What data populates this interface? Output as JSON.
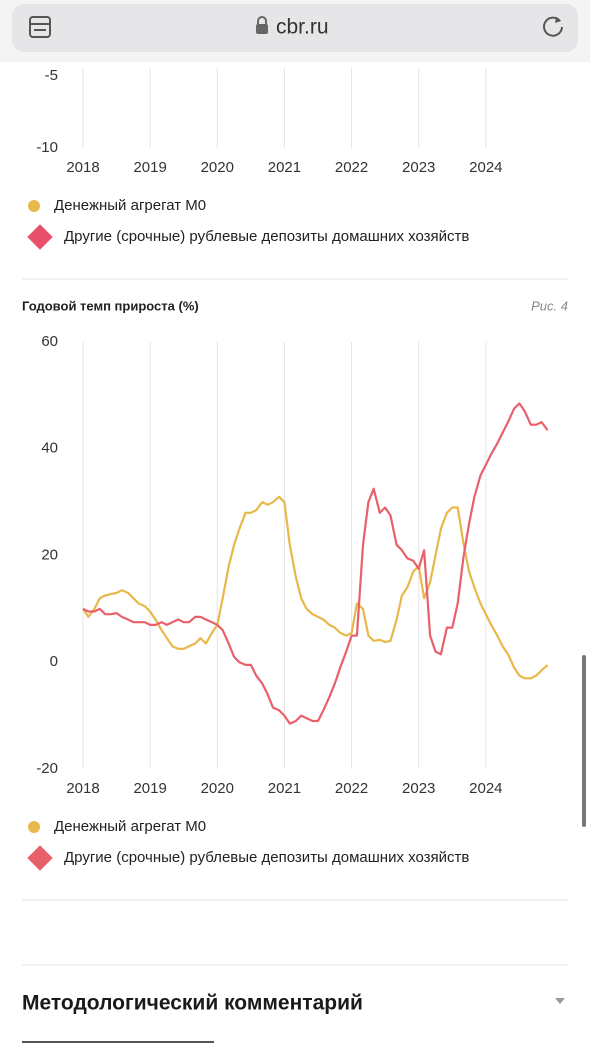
{
  "browser": {
    "url": "cbr.ru"
  },
  "chart_data": [
    {
      "type": "line",
      "xlim": [
        2018,
        2025
      ],
      "xticks": [
        2018,
        2019,
        2020,
        2021,
        2022,
        2023,
        2024
      ],
      "ylim": [
        -10,
        -5
      ],
      "yticks": [
        -10,
        -5
      ],
      "grid": "vertical",
      "series": [
        {
          "name": "Денежный агрегат M0",
          "color": "#e8b84a",
          "marker": "circle"
        },
        {
          "name": "Другие (срочные) рублевые депозиты домашних хозяйств",
          "color": "#e8506a",
          "marker": "diamond"
        }
      ]
    },
    {
      "type": "line",
      "title": "Годовой темп прироста (%)",
      "figure_label": "Рис. 4",
      "xlim": [
        2018,
        2025
      ],
      "xticks": [
        2018,
        2019,
        2020,
        2021,
        2022,
        2023,
        2024
      ],
      "ylim": [
        -20,
        60
      ],
      "yticks": [
        -20,
        0,
        20,
        40,
        60
      ],
      "grid": "vertical",
      "x": [
        2018,
        2018.08,
        2018.17,
        2018.25,
        2018.33,
        2018.42,
        2018.5,
        2018.58,
        2018.67,
        2018.75,
        2018.83,
        2018.92,
        2019,
        2019.08,
        2019.17,
        2019.25,
        2019.33,
        2019.42,
        2019.5,
        2019.58,
        2019.67,
        2019.75,
        2019.83,
        2019.92,
        2020,
        2020.08,
        2020.17,
        2020.25,
        2020.33,
        2020.42,
        2020.5,
        2020.58,
        2020.67,
        2020.75,
        2020.83,
        2020.92,
        2021,
        2021.08,
        2021.17,
        2021.25,
        2021.33,
        2021.42,
        2021.5,
        2021.58,
        2021.67,
        2021.75,
        2021.83,
        2021.92,
        2022,
        2022.08,
        2022.17,
        2022.25,
        2022.33,
        2022.42,
        2022.5,
        2022.58,
        2022.67,
        2022.75,
        2022.83,
        2022.92,
        2023,
        2023.08,
        2023.17,
        2023.25,
        2023.33,
        2023.42,
        2023.5,
        2023.58,
        2023.67,
        2023.75,
        2023.83,
        2023.92,
        2024,
        2024.08,
        2024.17,
        2024.25,
        2024.33,
        2024.42,
        2024.5,
        2024.58,
        2024.67,
        2024.75,
        2024.83,
        2024.92
      ],
      "series": [
        {
          "name": "Денежный агрегат M0",
          "color": "#e8b84a",
          "marker": "circle",
          "values": [
            10,
            8.5,
            10,
            12,
            12.5,
            12.8,
            13,
            13.5,
            13,
            12,
            11,
            10.5,
            9.5,
            8,
            6,
            4.5,
            3,
            2.5,
            2.5,
            3,
            3.5,
            4.5,
            3.5,
            5.5,
            7,
            12,
            18,
            22,
            25,
            28,
            28,
            28.5,
            30,
            29.5,
            30,
            31,
            30,
            22,
            16,
            12,
            10,
            9,
            8.5,
            8,
            7,
            6.5,
            5.5,
            5,
            5.5,
            11,
            10,
            5,
            4,
            4.2,
            3.8,
            4,
            8,
            12.5,
            14,
            17,
            18,
            12,
            15,
            20,
            25,
            28,
            29,
            29,
            22,
            17,
            14,
            11,
            9,
            7,
            5,
            3,
            1.5,
            -1,
            -2.5,
            -3,
            -3,
            -2.5,
            -1.5,
            -0.5
          ]
        },
        {
          "name": "Другие (срочные) рублевые депозиты домашних хозяйств",
          "color": "#e8606a",
          "marker": "diamond",
          "values": [
            10,
            9.5,
            9.5,
            10,
            9,
            9,
            9.2,
            8.5,
            8,
            7.5,
            7.5,
            7.5,
            7,
            7,
            7.5,
            7,
            7.5,
            8,
            7.5,
            7.5,
            8.5,
            8.5,
            8,
            7.5,
            7,
            6,
            3.5,
            1,
            0,
            -0.5,
            -0.5,
            -2.5,
            -4,
            -6,
            -8.5,
            -9,
            -10,
            -11.5,
            -11,
            -10,
            -10.5,
            -11,
            -11,
            -9,
            -6.5,
            -4,
            -1,
            2,
            5,
            5,
            22,
            30,
            32.5,
            28,
            29,
            27.5,
            22,
            21,
            19.5,
            19,
            17.5,
            21,
            5,
            2,
            1.5,
            6.5,
            6.5,
            11,
            20,
            26,
            31,
            35,
            37,
            39,
            41,
            43,
            45,
            47.5,
            48.5,
            47,
            44.5,
            44.5,
            45,
            43.5
          ]
        }
      ]
    }
  ],
  "section": {
    "heading": "Методологический комментарий"
  }
}
